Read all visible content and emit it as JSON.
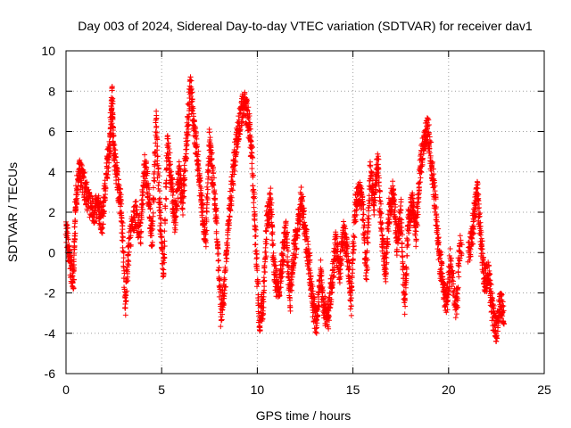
{
  "chart_data": {
    "type": "scatter",
    "title": "Day 003 of 2024, Sidereal Day-to-day VTEC variation (SDTVAR) for receiver dav1",
    "xlabel": "GPS time / hours",
    "ylabel": "SDTVAR / TECUs",
    "xlim": [
      0,
      25
    ],
    "ylim": [
      -6,
      10
    ],
    "xticks": [
      0,
      5,
      10,
      15,
      20,
      25
    ],
    "yticks": [
      -6,
      -4,
      -2,
      0,
      2,
      4,
      6,
      8,
      10
    ],
    "grid": true,
    "marker": "plus",
    "series": [
      {
        "name": "SDTVAR",
        "color": "#ff0000",
        "trend": [
          [
            0.0,
            1.2
          ],
          [
            0.2,
            -0.5
          ],
          [
            0.4,
            -1.3
          ],
          [
            0.5,
            2.5
          ],
          [
            0.7,
            4.0
          ],
          [
            0.9,
            3.5
          ],
          [
            1.1,
            2.8
          ],
          [
            1.4,
            2.0
          ],
          [
            1.7,
            2.2
          ],
          [
            1.9,
            1.5
          ],
          [
            2.1,
            3.8
          ],
          [
            2.3,
            5.5
          ],
          [
            2.4,
            7.8
          ],
          [
            2.5,
            5.0
          ],
          [
            2.7,
            3.5
          ],
          [
            2.9,
            2.0
          ],
          [
            3.1,
            -2.6
          ],
          [
            3.3,
            0.5
          ],
          [
            3.6,
            2.0
          ],
          [
            3.9,
            1.0
          ],
          [
            4.1,
            4.5
          ],
          [
            4.3,
            3.0
          ],
          [
            4.5,
            0.5
          ],
          [
            4.7,
            6.5
          ],
          [
            4.9,
            2.0
          ],
          [
            5.1,
            -1.0
          ],
          [
            5.3,
            5.5
          ],
          [
            5.5,
            3.5
          ],
          [
            5.7,
            1.5
          ],
          [
            5.9,
            4.0
          ],
          [
            6.1,
            2.5
          ],
          [
            6.3,
            5.5
          ],
          [
            6.5,
            8.3
          ],
          [
            6.7,
            6.0
          ],
          [
            6.9,
            4.5
          ],
          [
            7.1,
            2.5
          ],
          [
            7.3,
            0.5
          ],
          [
            7.5,
            5.5
          ],
          [
            7.7,
            3.5
          ],
          [
            7.9,
            1.0
          ],
          [
            8.1,
            -3.0
          ],
          [
            8.3,
            -1.5
          ],
          [
            8.5,
            1.5
          ],
          [
            8.7,
            3.5
          ],
          [
            8.9,
            5.5
          ],
          [
            9.1,
            6.5
          ],
          [
            9.3,
            7.5
          ],
          [
            9.5,
            6.8
          ],
          [
            9.7,
            5.0
          ],
          [
            9.9,
            1.0
          ],
          [
            10.1,
            -3.5
          ],
          [
            10.3,
            -2.5
          ],
          [
            10.5,
            1.5
          ],
          [
            10.7,
            2.5
          ],
          [
            10.9,
            -1.0
          ],
          [
            11.1,
            -2.0
          ],
          [
            11.3,
            -0.5
          ],
          [
            11.5,
            1.5
          ],
          [
            11.7,
            -2.5
          ],
          [
            11.9,
            0.0
          ],
          [
            12.1,
            1.0
          ],
          [
            12.3,
            2.8
          ],
          [
            12.5,
            1.0
          ],
          [
            12.7,
            -0.5
          ],
          [
            12.9,
            -2.5
          ],
          [
            13.1,
            -3.5
          ],
          [
            13.3,
            -1.0
          ],
          [
            13.5,
            -2.8
          ],
          [
            13.7,
            -3.2
          ],
          [
            13.9,
            -1.5
          ],
          [
            14.1,
            0.5
          ],
          [
            14.3,
            -1.0
          ],
          [
            14.5,
            1.0
          ],
          [
            14.7,
            0.0
          ],
          [
            14.9,
            -2.5
          ],
          [
            15.1,
            2.0
          ],
          [
            15.3,
            3.0
          ],
          [
            15.5,
            2.5
          ],
          [
            15.7,
            -1.0
          ],
          [
            15.9,
            4.0
          ],
          [
            16.1,
            2.5
          ],
          [
            16.3,
            4.5
          ],
          [
            16.5,
            1.0
          ],
          [
            16.7,
            -1.0
          ],
          [
            16.9,
            2.0
          ],
          [
            17.1,
            3.0
          ],
          [
            17.3,
            0.5
          ],
          [
            17.5,
            2.0
          ],
          [
            17.7,
            -2.5
          ],
          [
            17.9,
            1.5
          ],
          [
            18.1,
            2.5
          ],
          [
            18.3,
            1.0
          ],
          [
            18.5,
            4.0
          ],
          [
            18.7,
            5.5
          ],
          [
            18.9,
            6.2
          ],
          [
            19.1,
            4.5
          ],
          [
            19.3,
            2.5
          ],
          [
            19.5,
            0.0
          ],
          [
            19.7,
            -1.5
          ],
          [
            19.9,
            -2.5
          ],
          [
            20.1,
            -0.5
          ],
          [
            20.4,
            -2.9
          ],
          [
            20.6,
            0.5
          ],
          [
            21.1,
            0.0
          ],
          [
            21.3,
            1.5
          ],
          [
            21.5,
            3.0
          ],
          [
            21.7,
            0.5
          ],
          [
            21.9,
            -1.5
          ],
          [
            22.1,
            -1.0
          ],
          [
            22.3,
            -3.0
          ],
          [
            22.5,
            -4.0
          ],
          [
            22.7,
            -2.5
          ],
          [
            22.9,
            -3.0
          ]
        ]
      }
    ]
  }
}
